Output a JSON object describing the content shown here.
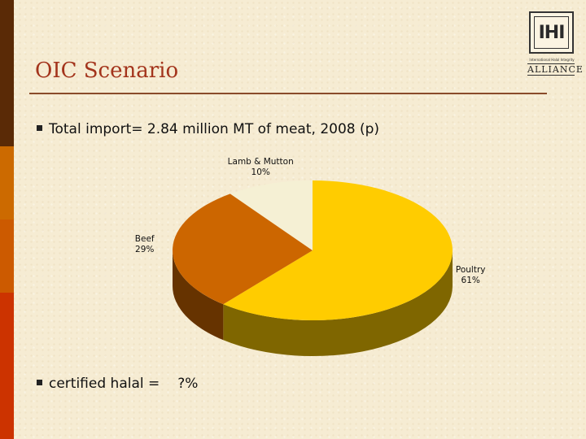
{
  "slide": {
    "title": "OIC Scenario",
    "bullet_1": "Total import= 2.84 million MT of meat, 2008 (p)",
    "bullet_2": "certified halal =",
    "bullet_2_value": "?%"
  },
  "logo": {
    "mark": "IHI",
    "subtitle": "International Halal Integrity",
    "name": "ALLIANCE"
  },
  "colors": {
    "sidebar": [
      "#5a2a06",
      "#cc6a00",
      "#cc5a00",
      "#cc3300"
    ],
    "title": "#a3341c"
  },
  "chart_data": {
    "type": "pie",
    "style": "3d",
    "title": "",
    "slices": [
      {
        "label": "Poultry",
        "value": 61,
        "value_label": "61%",
        "color": "#ffcc00",
        "side": "#7f6600"
      },
      {
        "label": "Beef",
        "value": 29,
        "value_label": "29%",
        "color": "#cc6600",
        "side": "#663300"
      },
      {
        "label": "Lamb & Mutton",
        "value": 10,
        "value_label": "10%",
        "color": "#f5f0d4",
        "side": "#8a8566"
      }
    ]
  }
}
